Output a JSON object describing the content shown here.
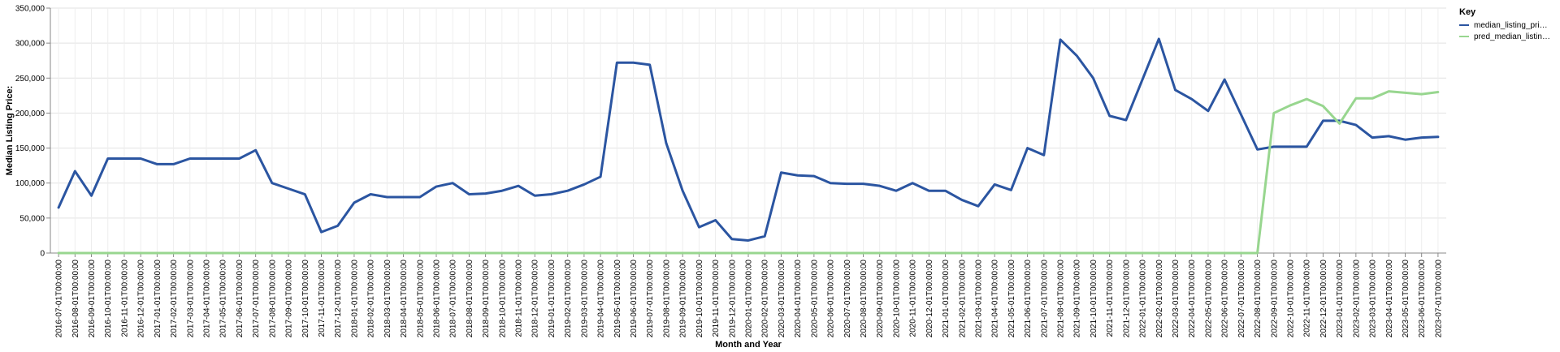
{
  "chart_data": {
    "type": "line",
    "title": "",
    "xlabel": "Month and Year",
    "ylabel": "Median Listing Price:",
    "ylim": [
      0,
      350000
    ],
    "y_ticks": [
      "0",
      "50,000",
      "100,000",
      "150,000",
      "200,000",
      "250,000",
      "300,000",
      "350,000"
    ],
    "y_tick_values": [
      0,
      50000,
      100000,
      150000,
      200000,
      250000,
      300000,
      350000
    ],
    "grid": true,
    "legend": {
      "title": "Key",
      "placement": "right"
    },
    "categories": [
      "2016-07-01T00:00:00",
      "2016-08-01T00:00:00",
      "2016-09-01T00:00:00",
      "2016-10-01T00:00:00",
      "2016-11-01T00:00:00",
      "2016-12-01T00:00:00",
      "2017-01-01T00:00:00",
      "2017-02-01T00:00:00",
      "2017-03-01T00:00:00",
      "2017-04-01T00:00:00",
      "2017-05-01T00:00:00",
      "2017-06-01T00:00:00",
      "2017-07-01T00:00:00",
      "2017-08-01T00:00:00",
      "2017-09-01T00:00:00",
      "2017-10-01T00:00:00",
      "2017-11-01T00:00:00",
      "2017-12-01T00:00:00",
      "2018-01-01T00:00:00",
      "2018-02-01T00:00:00",
      "2018-03-01T00:00:00",
      "2018-04-01T00:00:00",
      "2018-05-01T00:00:00",
      "2018-06-01T00:00:00",
      "2018-07-01T00:00:00",
      "2018-08-01T00:00:00",
      "2018-09-01T00:00:00",
      "2018-10-01T00:00:00",
      "2018-11-01T00:00:00",
      "2018-12-01T00:00:00",
      "2019-01-01T00:00:00",
      "2019-02-01T00:00:00",
      "2019-03-01T00:00:00",
      "2019-04-01T00:00:00",
      "2019-05-01T00:00:00",
      "2019-06-01T00:00:00",
      "2019-07-01T00:00:00",
      "2019-08-01T00:00:00",
      "2019-09-01T00:00:00",
      "2019-10-01T00:00:00",
      "2019-11-01T00:00:00",
      "2019-12-01T00:00:00",
      "2020-01-01T00:00:00",
      "2020-02-01T00:00:00",
      "2020-03-01T00:00:00",
      "2020-04-01T00:00:00",
      "2020-05-01T00:00:00",
      "2020-06-01T00:00:00",
      "2020-07-01T00:00:00",
      "2020-08-01T00:00:00",
      "2020-09-01T00:00:00",
      "2020-10-01T00:00:00",
      "2020-11-01T00:00:00",
      "2020-12-01T00:00:00",
      "2021-01-01T00:00:00",
      "2021-02-01T00:00:00",
      "2021-03-01T00:00:00",
      "2021-04-01T00:00:00",
      "2021-05-01T00:00:00",
      "2021-06-01T00:00:00",
      "2021-07-01T00:00:00",
      "2021-08-01T00:00:00",
      "2021-09-01T00:00:00",
      "2021-10-01T00:00:00",
      "2021-11-01T00:00:00",
      "2021-12-01T00:00:00",
      "2022-01-01T00:00:00",
      "2022-02-01T00:00:00",
      "2022-03-01T00:00:00",
      "2022-04-01T00:00:00",
      "2022-05-01T00:00:00",
      "2022-06-01T00:00:00",
      "2022-07-01T00:00:00",
      "2022-08-01T00:00:00",
      "2022-09-01T00:00:00",
      "2022-10-01T00:00:00",
      "2022-11-01T00:00:00",
      "2022-12-01T00:00:00",
      "2023-01-01T00:00:00",
      "2023-02-01T00:00:00",
      "2023-03-01T00:00:00",
      "2023-04-01T00:00:00",
      "2023-05-01T00:00:00",
      "2023-06-01T00:00:00",
      "2023-07-01T00:00:00"
    ],
    "series": [
      {
        "name": "median_listing_pri…",
        "color": "#2b55a1",
        "values": [
          65000,
          117000,
          82000,
          135000,
          135000,
          135000,
          127000,
          127000,
          135000,
          135000,
          135000,
          135000,
          147000,
          100000,
          92000,
          84000,
          30000,
          39000,
          72000,
          84000,
          80000,
          80000,
          80000,
          95000,
          100000,
          84000,
          85000,
          89000,
          96000,
          82000,
          84000,
          89000,
          98000,
          109000,
          272000,
          272000,
          269000,
          157000,
          89000,
          37000,
          47000,
          20000,
          18000,
          24000,
          115000,
          111000,
          110000,
          100000,
          99000,
          99000,
          96000,
          89000,
          100000,
          89000,
          89000,
          76000,
          67000,
          98000,
          90000,
          150000,
          140000,
          305000,
          282000,
          250000,
          196000,
          190000,
          248000,
          306000,
          233000,
          220000,
          203000,
          248000,
          198000,
          148000,
          152000,
          152000,
          152000,
          189000,
          189000,
          183000,
          165000,
          167000,
          162000,
          165000,
          166000
        ]
      },
      {
        "name": "pred_median_listin…",
        "color": "#98d68f",
        "values": [
          0,
          0,
          0,
          0,
          0,
          0,
          0,
          0,
          0,
          0,
          0,
          0,
          0,
          0,
          0,
          0,
          0,
          0,
          0,
          0,
          0,
          0,
          0,
          0,
          0,
          0,
          0,
          0,
          0,
          0,
          0,
          0,
          0,
          0,
          0,
          0,
          0,
          0,
          0,
          0,
          0,
          0,
          0,
          0,
          0,
          0,
          0,
          0,
          0,
          0,
          0,
          0,
          0,
          0,
          0,
          0,
          0,
          0,
          0,
          0,
          0,
          0,
          0,
          0,
          0,
          0,
          0,
          0,
          0,
          0,
          0,
          0,
          0,
          0,
          200000,
          211000,
          220000,
          210000,
          185000,
          221000,
          221000,
          231000,
          229000,
          227000,
          230000
        ]
      }
    ]
  }
}
